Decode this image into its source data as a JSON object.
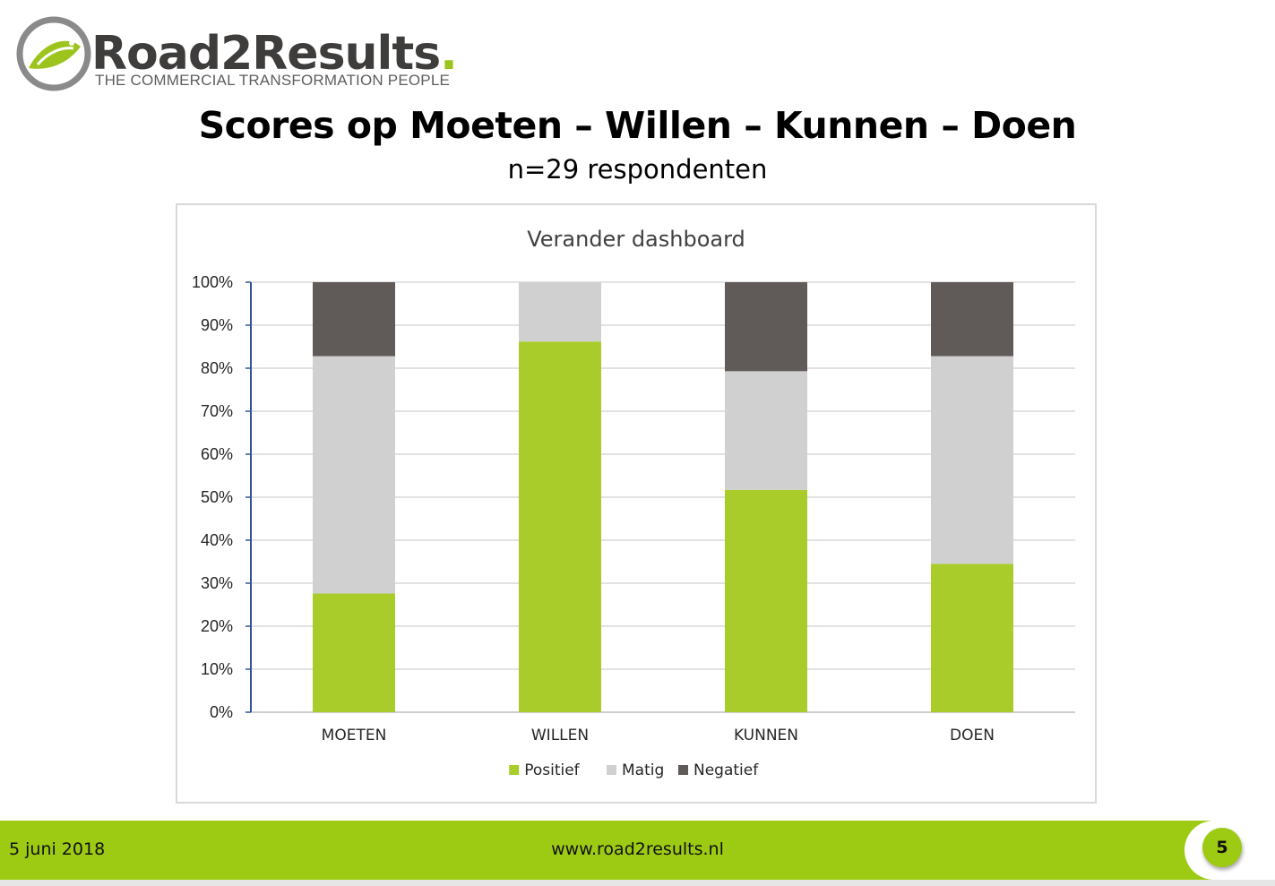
{
  "logo": {
    "name_main": "Road2Results",
    "name_dot": ".",
    "tagline": "THE COMMERCIAL TRANSFORMATION PEOPLE"
  },
  "slide": {
    "title": "Scores op Moeten – Willen – Kunnen – Doen",
    "subtitle": "n=29 respondenten"
  },
  "footer": {
    "date": "5 juni 2018",
    "url": "www.road2results.nl",
    "page_number": "5"
  },
  "colors": {
    "brand_green": "#9dcb13",
    "positief": "#a9cc2b",
    "matig": "#d0d0d0",
    "negatief": "#605b59"
  },
  "chart_data": {
    "type": "bar",
    "stacked": true,
    "title": "Verander dashboard",
    "categories": [
      "MOETEN",
      "WILLEN",
      "KUNNEN",
      "DOEN"
    ],
    "series": [
      {
        "name": "Positief",
        "color": "#a9cc2b",
        "values": [
          27.6,
          86.2,
          51.7,
          34.5
        ]
      },
      {
        "name": "Matig",
        "color": "#d0d0d0",
        "values": [
          55.2,
          13.8,
          27.6,
          48.3
        ]
      },
      {
        "name": "Negatief",
        "color": "#605b59",
        "values": [
          17.2,
          0,
          20.7,
          17.2
        ]
      }
    ],
    "yticks": [
      "0%",
      "10%",
      "20%",
      "30%",
      "40%",
      "50%",
      "60%",
      "70%",
      "80%",
      "90%",
      "100%"
    ],
    "ylim": [
      0,
      100
    ],
    "y_unit": "%",
    "grid": true,
    "legend": "bottom"
  }
}
